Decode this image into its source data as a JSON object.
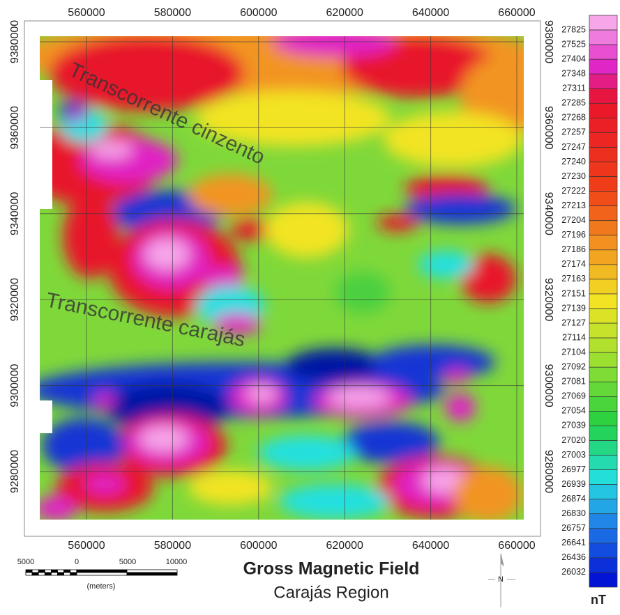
{
  "map": {
    "x_ticks": [
      560000,
      580000,
      600000,
      620000,
      640000,
      660000
    ],
    "y_ticks": [
      9380000,
      9360000,
      9340000,
      9320000,
      9300000,
      9280000
    ],
    "annotations": [
      "Transcorrente cinzento",
      "Transcorrente carajás"
    ],
    "scale_bar": {
      "labels": [
        "5000",
        "0",
        "5000",
        "10000"
      ],
      "unit": "(meters)"
    },
    "title": "Gross Magnetic Field",
    "subtitle": "Carajás Region",
    "north": "N"
  },
  "legend": {
    "labels": [
      27825,
      27525,
      27404,
      27348,
      27311,
      27285,
      27268,
      27257,
      27247,
      27240,
      27230,
      27222,
      27213,
      27204,
      27196,
      27186,
      27174,
      27163,
      27151,
      27139,
      27127,
      27114,
      27104,
      27092,
      27081,
      27069,
      27054,
      27039,
      27020,
      27003,
      26977,
      26939,
      26874,
      26830,
      26757,
      26641,
      26436,
      26032
    ],
    "unit": "nT"
  }
}
